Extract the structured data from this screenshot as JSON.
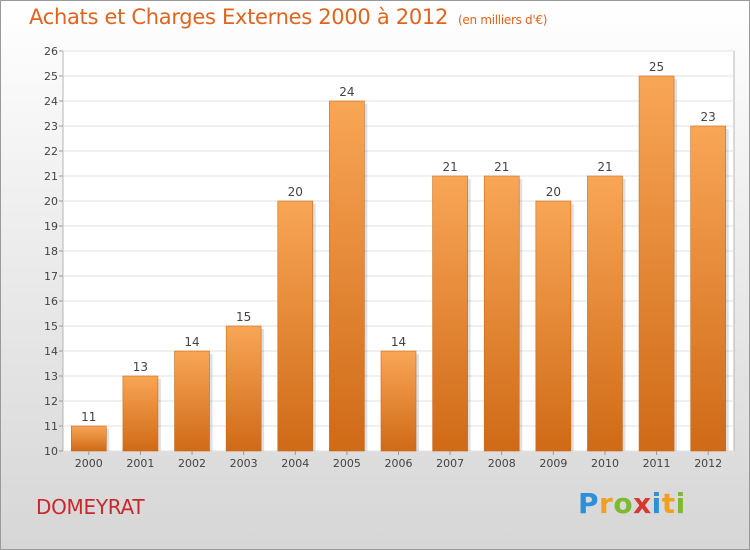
{
  "title": "Achats et Charges Externes 2000 à 2012",
  "unit": "(en milliers d'€)",
  "commune": "DOMEYRAT",
  "logo": {
    "letters": [
      "P",
      "r",
      "o",
      "x",
      "i",
      "t",
      "i"
    ],
    "colors": [
      "#2f8fd6",
      "#f0a020",
      "#7dba2f",
      "#d8382f",
      "#2f8fd6",
      "#f0a020",
      "#7dba2f"
    ]
  },
  "colors": {
    "bar_top": "#f8a656",
    "bar_bottom": "#cf6a17",
    "title": "#e0641e",
    "commune": "#c8282d"
  },
  "chart_data": {
    "type": "bar",
    "categories": [
      "2000",
      "2001",
      "2002",
      "2003",
      "2004",
      "2005",
      "2006",
      "2007",
      "2008",
      "2009",
      "2010",
      "2011",
      "2012"
    ],
    "values": [
      11,
      13,
      14,
      15,
      20,
      24,
      14,
      21,
      21,
      20,
      21,
      25,
      23
    ],
    "data_labels": [
      "11",
      "13",
      "14",
      "15",
      "20",
      "24",
      "14",
      "21",
      "21",
      "20",
      "21",
      "25",
      "23"
    ],
    "ylim": [
      10,
      26
    ],
    "yticks": [
      "10",
      "11",
      "12",
      "13",
      "14",
      "15",
      "16",
      "17",
      "18",
      "19",
      "20",
      "21",
      "22",
      "23",
      "24",
      "25",
      "26"
    ],
    "grid": true
  }
}
